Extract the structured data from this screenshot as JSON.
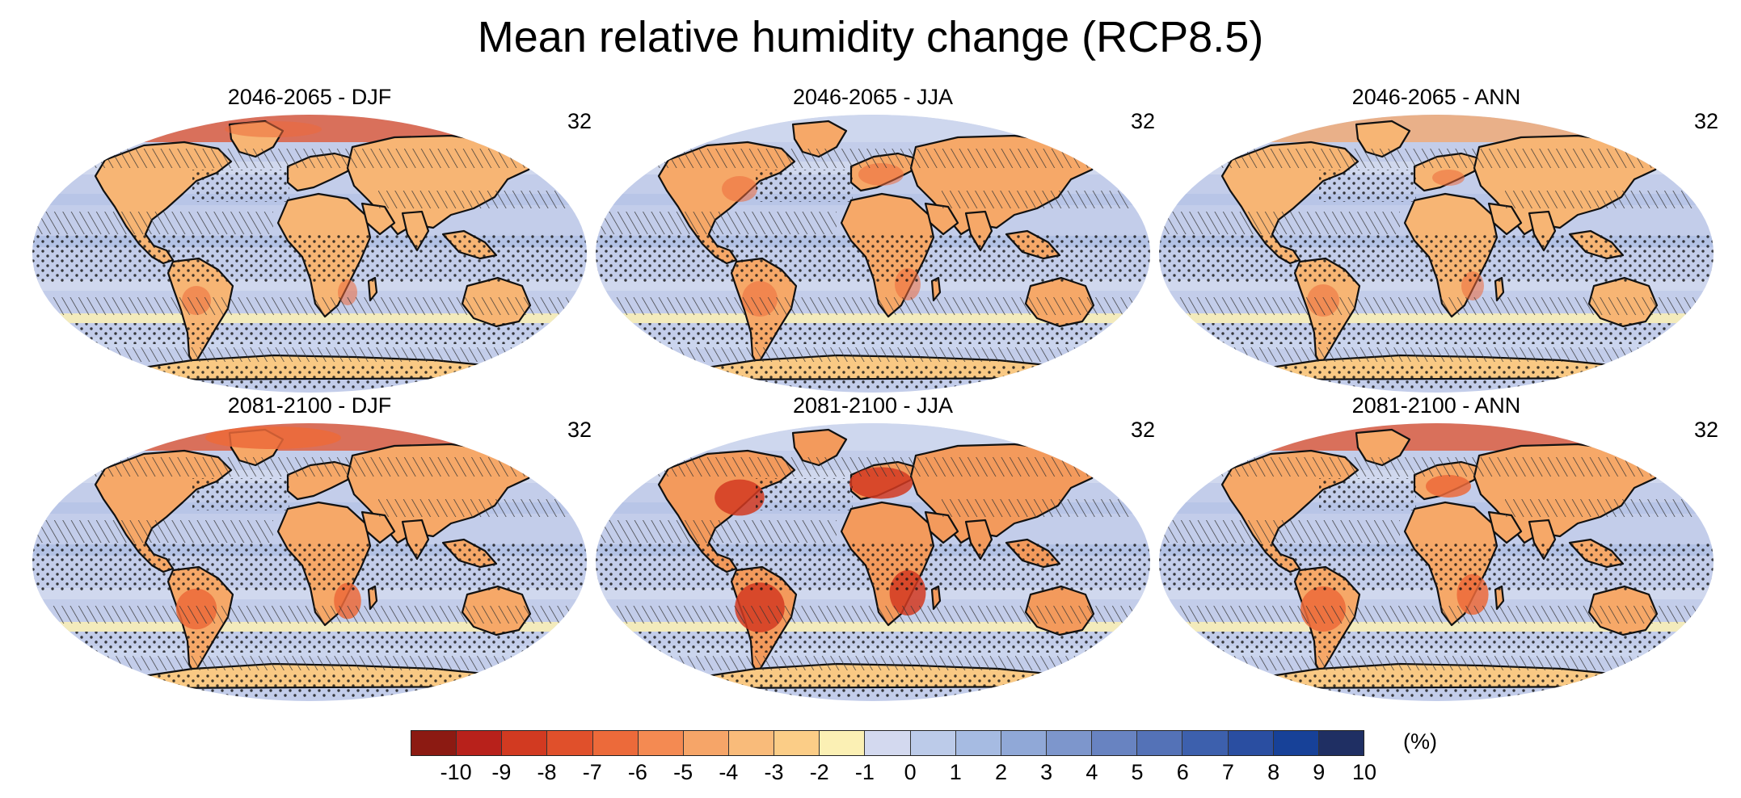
{
  "title": "Mean relative humidity change (RCP8.5)",
  "panels": [
    {
      "title": "2046-2065 - DJF",
      "count": "32",
      "period": "mid",
      "season": "DJF"
    },
    {
      "title": "2046-2065 - JJA",
      "count": "32",
      "period": "mid",
      "season": "JJA"
    },
    {
      "title": "2046-2065 - ANN",
      "count": "32",
      "period": "mid",
      "season": "ANN"
    },
    {
      "title": "2081-2100 - DJF",
      "count": "32",
      "period": "late",
      "season": "DJF"
    },
    {
      "title": "2081-2100 - JJA",
      "count": "32",
      "period": "late",
      "season": "JJA"
    },
    {
      "title": "2081-2100 - ANN",
      "count": "32",
      "period": "late",
      "season": "ANN"
    }
  ],
  "colorbar": {
    "unit": "(%)",
    "tick_labels": [
      "-10",
      "-9",
      "-8",
      "-7",
      "-6",
      "-5",
      "-4",
      "-3",
      "-2",
      "-1",
      "0",
      "1",
      "2",
      "3",
      "4",
      "5",
      "6",
      "7",
      "8",
      "9",
      "10"
    ],
    "colors": [
      "#8c1a12",
      "#b8211b",
      "#d23a21",
      "#e0502b",
      "#ec6a3a",
      "#f48a52",
      "#f6a568",
      "#f9bb7a",
      "#fbcd87",
      "#fbf0b4",
      "#d3d9ef",
      "#bccbe9",
      "#a6bbe2",
      "#90a8d7",
      "#7d96cc",
      "#6883c1",
      "#5472b7",
      "#3d60ad",
      "#2a4ea1",
      "#174198",
      "#1f2f63"
    ]
  },
  "legend_hatching": "diagonal hatching and stippling overlays",
  "colors": {
    "ocean": "#c3cdea",
    "land": "#f6b672",
    "border": "#111111"
  }
}
